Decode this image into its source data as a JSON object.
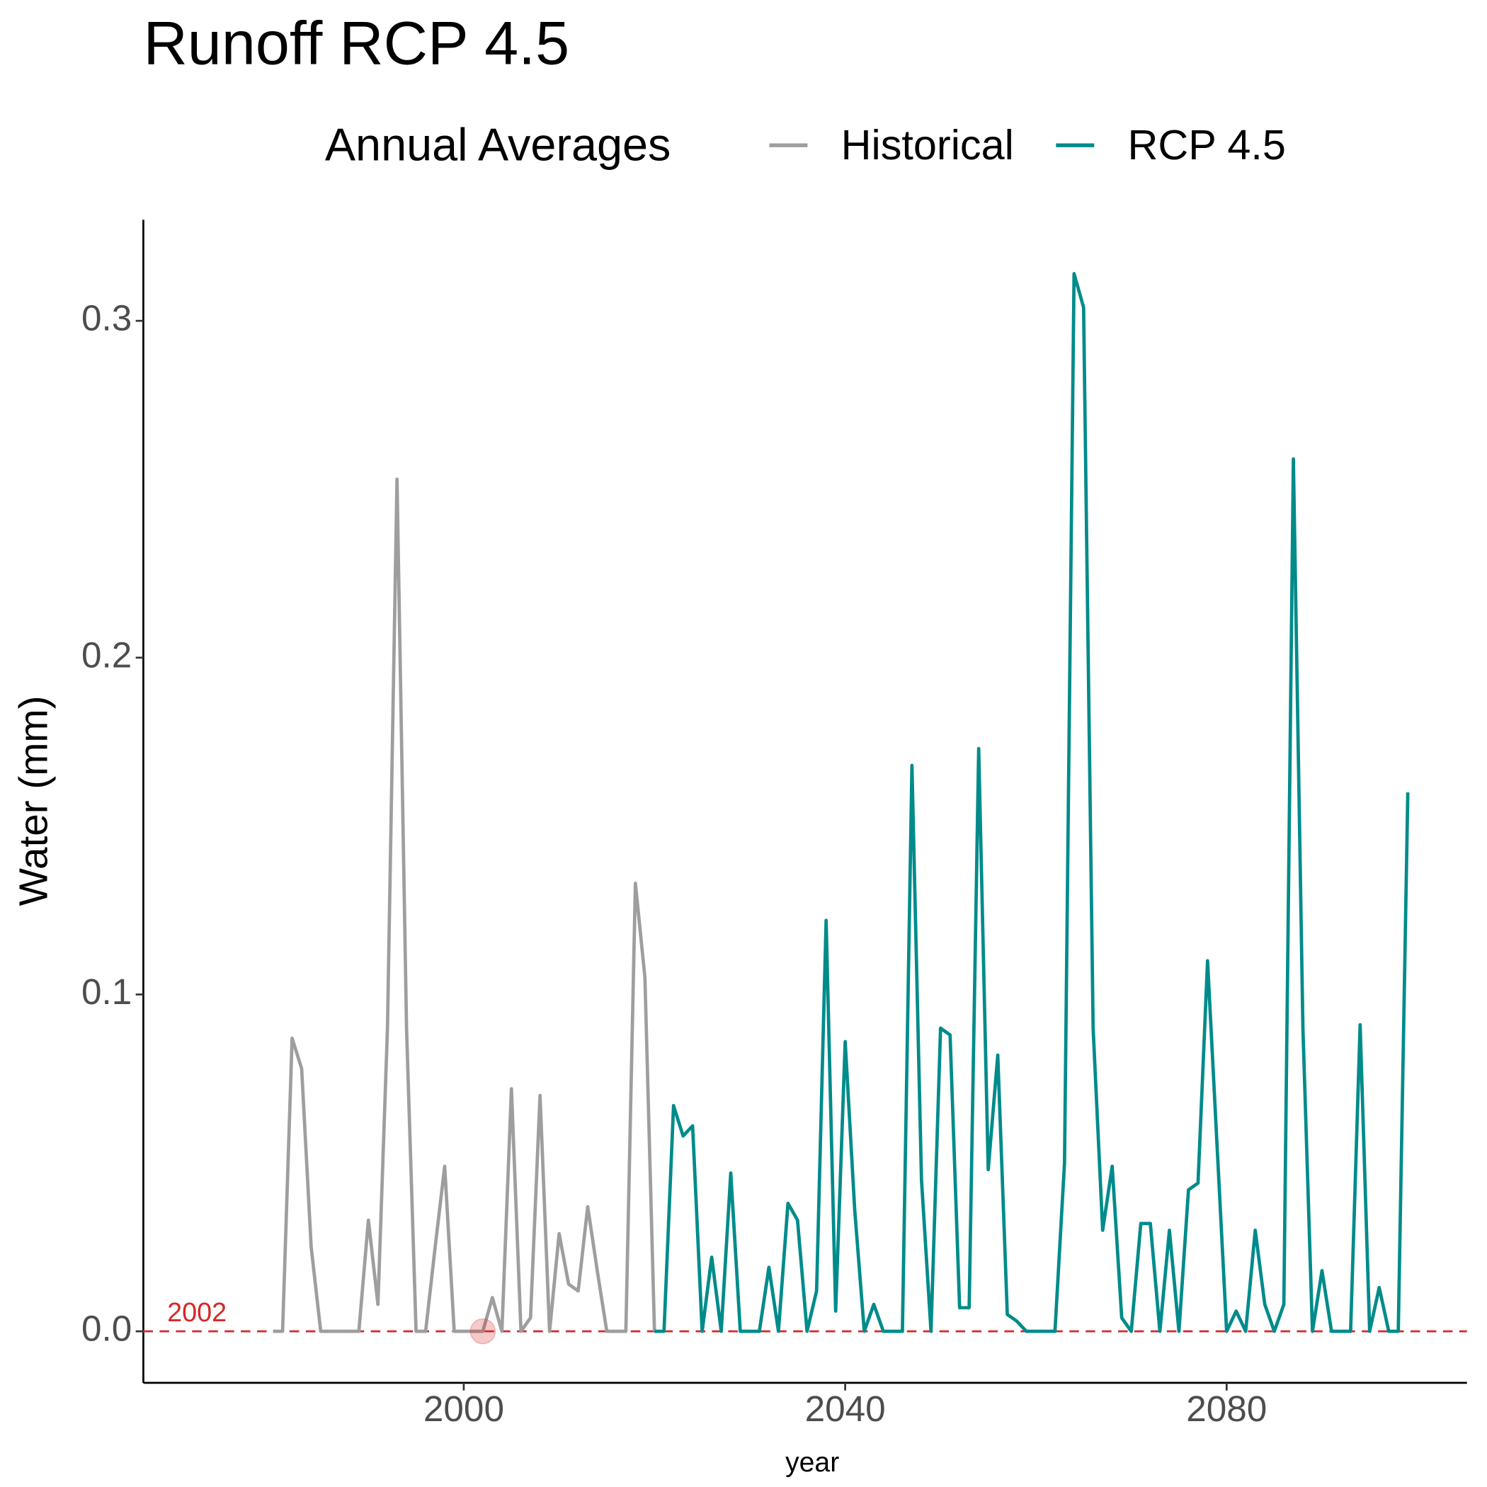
{
  "chart_data": {
    "type": "line",
    "title": "Runoff RCP 4.5",
    "x_label": "year",
    "y_label": "Water (mm)",
    "legend_title": "Annual Averages",
    "legend_position": "top",
    "series": [
      {
        "name": "Historical",
        "color": "#9e9e9e",
        "x": [
          1980,
          1981,
          1982,
          1983,
          1984,
          1985,
          1986,
          1987,
          1988,
          1989,
          1990,
          1991,
          1992,
          1993,
          1994,
          1995,
          1996,
          1997,
          1998,
          1999,
          2000,
          2001,
          2002,
          2003,
          2004,
          2005,
          2006,
          2007,
          2008,
          2009,
          2010,
          2011,
          2012,
          2013,
          2014,
          2015,
          2016,
          2017,
          2018,
          2019,
          2020
        ],
        "values": [
          0,
          0,
          0.087,
          0.078,
          0.025,
          0,
          0,
          0,
          0,
          0,
          0.033,
          0.008,
          0.09,
          0.253,
          0.09,
          0,
          0,
          0.025,
          0.049,
          0,
          0,
          0,
          0,
          0.01,
          0,
          0.072,
          0,
          0.004,
          0.07,
          0,
          0.029,
          0.014,
          0.012,
          0.037,
          0.018,
          0,
          0,
          0,
          0.133,
          0.105,
          0
        ]
      },
      {
        "name": "RCP 4.5",
        "color": "#008b8b",
        "x": [
          2020,
          2021,
          2022,
          2023,
          2024,
          2025,
          2026,
          2027,
          2028,
          2029,
          2030,
          2031,
          2032,
          2033,
          2034,
          2035,
          2036,
          2037,
          2038,
          2039,
          2040,
          2041,
          2042,
          2043,
          2044,
          2045,
          2046,
          2047,
          2048,
          2049,
          2050,
          2051,
          2052,
          2053,
          2054,
          2055,
          2056,
          2057,
          2058,
          2059,
          2060,
          2061,
          2062,
          2063,
          2064,
          2065,
          2066,
          2067,
          2068,
          2069,
          2070,
          2071,
          2072,
          2073,
          2074,
          2075,
          2076,
          2077,
          2078,
          2079,
          2080,
          2081,
          2082,
          2083,
          2084,
          2085,
          2086,
          2087,
          2088,
          2089,
          2090,
          2091,
          2092,
          2093,
          2094,
          2095,
          2096,
          2097,
          2098,
          2099
        ],
        "values": [
          0,
          0,
          0.067,
          0.058,
          0.061,
          0,
          0.022,
          0,
          0.047,
          0,
          0,
          0,
          0.019,
          0,
          0.038,
          0.033,
          0,
          0.012,
          0.122,
          0.006,
          0.086,
          0.036,
          0,
          0.008,
          0,
          0,
          0,
          0.168,
          0.045,
          0,
          0.09,
          0.088,
          0.007,
          0.007,
          0.173,
          0.048,
          0.082,
          0.005,
          0.003,
          0,
          0,
          0,
          0,
          0.05,
          0.314,
          0.304,
          0.09,
          0.03,
          0.049,
          0.004,
          0,
          0.032,
          0.032,
          0,
          0.03,
          0,
          0.042,
          0.044,
          0.11,
          0.055,
          0,
          0.006,
          0,
          0.03,
          0.008,
          0,
          0.008,
          0.259,
          0.09,
          0,
          0.018,
          0,
          0,
          0,
          0.091,
          0,
          0.013,
          0,
          0,
          0.16
        ]
      }
    ],
    "hline": {
      "value": 0,
      "color": "#d62728"
    },
    "highlight": {
      "x": 2002,
      "y": 0,
      "label": "2002",
      "color": "#d62728"
    },
    "xlim": [
      1966.4,
      2105.2
    ],
    "ylim": [
      -0.0153,
      0.33
    ],
    "xticks": [
      2000,
      2040,
      2080
    ],
    "yticks": [
      {
        "value": 0,
        "label": "0.0"
      },
      0.1,
      0.2,
      0.3
    ],
    "grid": false
  }
}
